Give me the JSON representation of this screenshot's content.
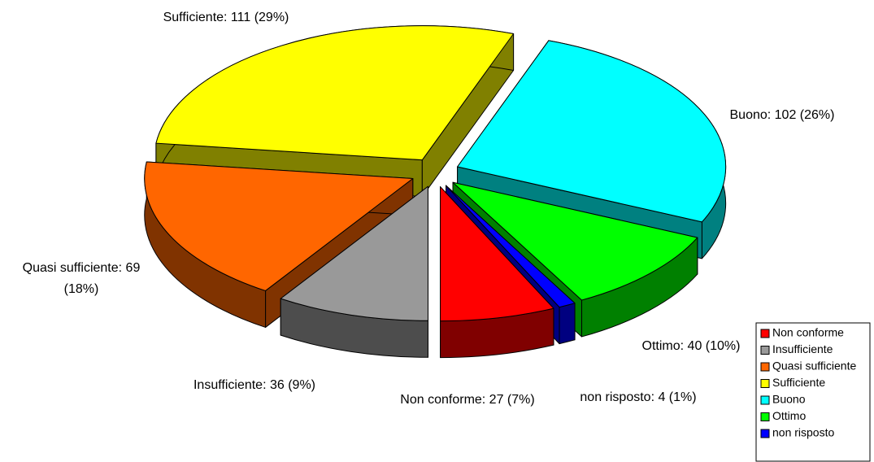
{
  "chart_data": {
    "type": "pie",
    "categories": [
      "Non conforme",
      "Insufficiente",
      "Quasi sufficiente",
      "Sufficiente",
      "Buono",
      "Ottimo",
      "non risposto"
    ],
    "values": [
      27,
      36,
      69,
      111,
      102,
      40,
      4
    ],
    "value_labels": [
      "Non conforme: 27 (7%)",
      "Insufficiente: 36 (9%)",
      "Quasi sufficiente: 69 (18%)",
      "Sufficiente: 111 (29%)",
      "Buono: 102 (26%)",
      "Ottimo: 40 (10%)",
      "non risposto: 4 (1%)"
    ],
    "colors": [
      "#ff0000",
      "#999999",
      "#ff6600",
      "#ffff00",
      "#00ffff",
      "#00ff00",
      "#0000ff"
    ],
    "legend": "lower right"
  }
}
